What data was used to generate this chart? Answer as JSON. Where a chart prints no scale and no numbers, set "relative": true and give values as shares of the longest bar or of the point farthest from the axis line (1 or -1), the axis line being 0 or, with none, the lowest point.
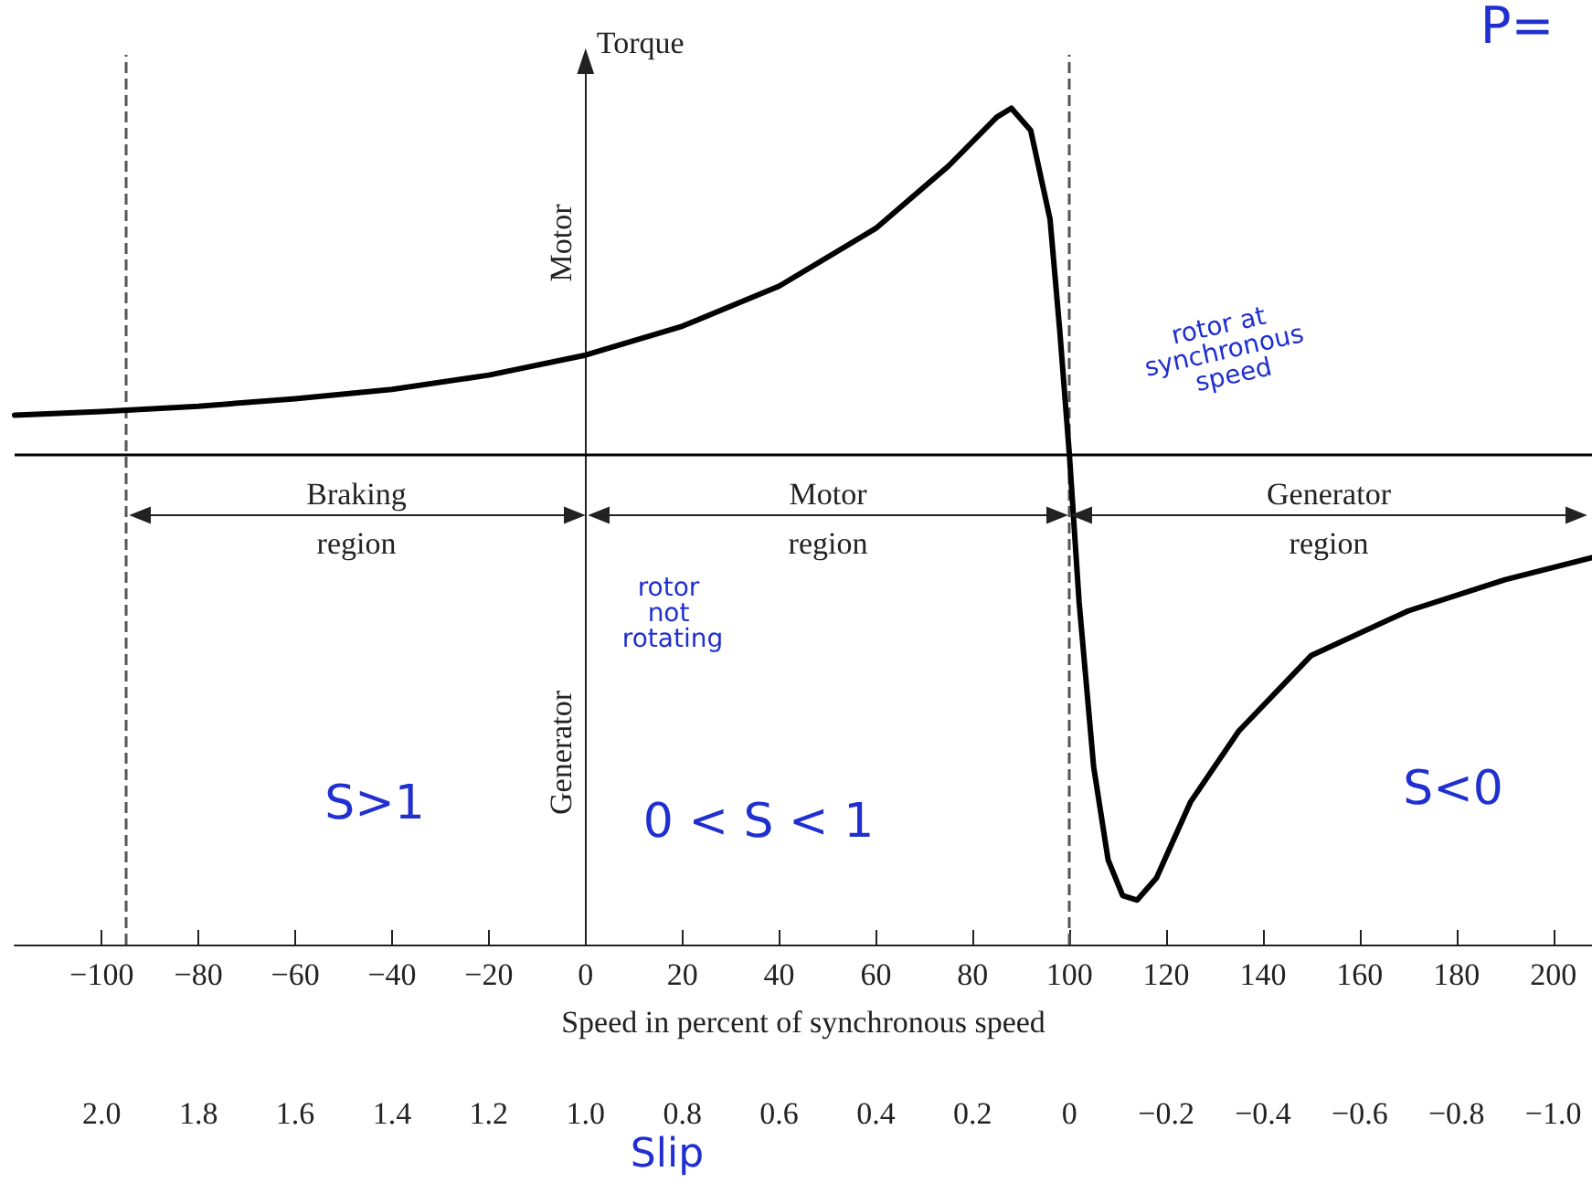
{
  "chart_data": {
    "type": "line",
    "relative": true,
    "ylabel": "Torque",
    "xlabel": "Speed in percent of synchronous speed",
    "x2label": "Slip",
    "xlim": [
      -118,
      208
    ],
    "xticks": [
      -100,
      -80,
      -60,
      -40,
      -20,
      0,
      20,
      40,
      60,
      80,
      100,
      120,
      140,
      160,
      180,
      200
    ],
    "x2lim": [
      2.18,
      -1.08
    ],
    "x2ticks": [
      {
        "value": 2,
        "label": "2.0"
      },
      {
        "value": 1.8,
        "label": "1.8"
      },
      {
        "value": 1.6,
        "label": "1.6"
      },
      {
        "value": 1.4,
        "label": "1.4"
      },
      {
        "value": 1.2,
        "label": "1.2"
      },
      {
        "value": 1,
        "label": "1.0"
      },
      {
        "value": 0.8,
        "label": "0.8"
      },
      {
        "value": 0.6,
        "label": "0.6"
      },
      {
        "value": 0.4,
        "label": "0.4"
      },
      {
        "value": 0.2,
        "label": "0.2"
      },
      {
        "value": 0,
        "label": "0"
      },
      {
        "value": -0.2,
        "label": "−0.2"
      },
      {
        "value": -0.4,
        "label": "−0.4"
      },
      {
        "value": -0.6,
        "label": "−0.6"
      },
      {
        "value": -0.8,
        "label": "−0.8"
      },
      {
        "value": -1,
        "label": "−1.0"
      }
    ],
    "x": [
      -118,
      -100,
      -80,
      -60,
      -40,
      -20,
      0,
      20,
      40,
      60,
      75,
      85,
      88,
      92,
      96,
      98,
      100,
      102,
      105,
      108,
      111,
      114,
      118,
      125,
      135,
      150,
      170,
      190,
      208
    ],
    "series": [
      {
        "color": "#000000",
        "values": [
          0.09,
          0.098,
          0.11,
          0.127,
          0.148,
          0.18,
          0.225,
          0.29,
          0.38,
          0.51,
          0.65,
          0.76,
          0.78,
          0.73,
          0.53,
          0.28,
          0,
          -0.33,
          -0.7,
          -0.91,
          -0.99,
          -1,
          -0.95,
          -0.78,
          -0.62,
          -0.45,
          -0.35,
          -0.28,
          -0.23
        ]
      }
    ],
    "marker": "none",
    "line_style": "solid",
    "grid": false,
    "ref_lines": [
      {
        "axis": "y",
        "value": 0,
        "line_style": "solid",
        "color": "#000000"
      },
      {
        "axis": "x",
        "value": -95,
        "line_style": "dashed",
        "color": "#555555"
      },
      {
        "axis": "x",
        "value": 100,
        "line_style": "dashed",
        "color": "#555555"
      }
    ],
    "annotations": [
      "Motor",
      "Generator",
      "rotor at synchronous speed",
      "rotor not rotating",
      "S>1",
      "0 < S < 1",
      "S<0",
      "P=",
      "Braking\nregion",
      "Motor\nregion",
      "Generator\nregion"
    ]
  }
}
